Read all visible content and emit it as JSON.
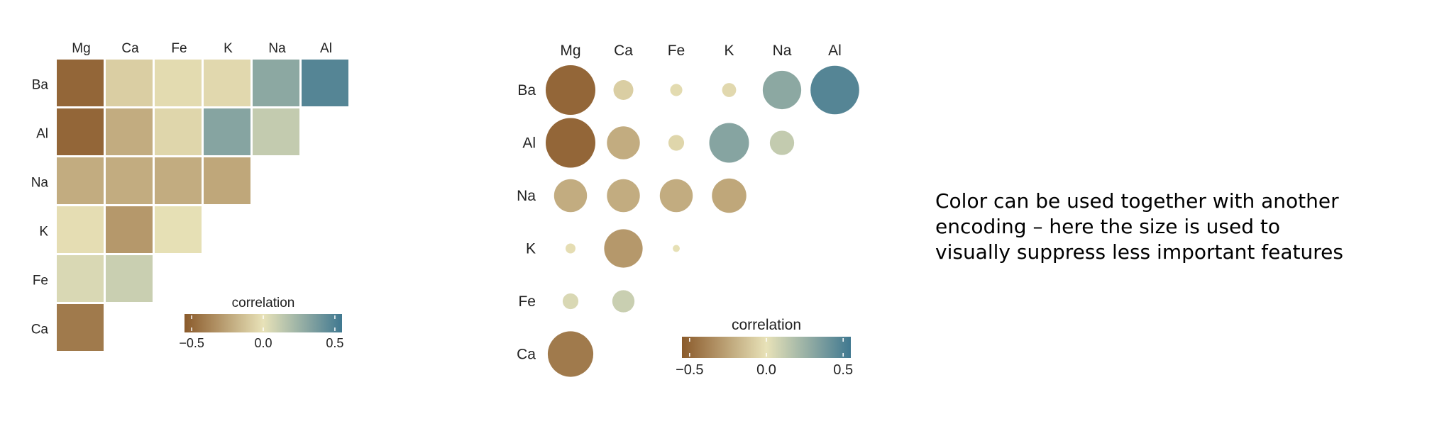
{
  "caption": {
    "lines": [
      "Color can be used together with another",
      "encoding – here the size is used to",
      "visually suppress less important features"
    ]
  },
  "colors": {
    "neg": "#8a5a2b",
    "mid": "#e8e2b8",
    "pos": "#3f7890",
    "background": "#ffffff"
  },
  "chart_data": [
    {
      "type": "heatmap",
      "title": "",
      "columns": [
        "Mg",
        "Ca",
        "Fe",
        "K",
        "Na",
        "Al"
      ],
      "rows": [
        "Ba",
        "Al",
        "Na",
        "K",
        "Fe",
        "Ca"
      ],
      "values": [
        [
          -0.5,
          -0.08,
          -0.03,
          -0.04,
          0.3,
          0.48
        ],
        [
          -0.5,
          -0.22,
          -0.05,
          0.32,
          0.12,
          null
        ],
        [
          -0.22,
          -0.22,
          -0.22,
          -0.24,
          null,
          null
        ],
        [
          -0.02,
          -0.3,
          -0.01,
          null,
          null,
          null
        ],
        [
          0.05,
          0.1,
          null,
          null,
          null,
          null
        ],
        [
          -0.42,
          null,
          null,
          null,
          null,
          null
        ]
      ],
      "legend": {
        "title": "correlation",
        "ticks": [
          "−0.5",
          "0.0",
          "0.5"
        ],
        "range": [
          -0.55,
          0.55
        ],
        "placement": "bottom-right"
      }
    },
    {
      "type": "scatter",
      "encoding": "circle size and color by correlation",
      "title": "",
      "columns": [
        "Mg",
        "Ca",
        "Fe",
        "K",
        "Na",
        "Al"
      ],
      "rows": [
        "Ba",
        "Al",
        "Na",
        "K",
        "Fe",
        "Ca"
      ],
      "values": [
        [
          -0.5,
          -0.08,
          -0.03,
          -0.04,
          0.3,
          0.48
        ],
        [
          -0.5,
          -0.22,
          -0.05,
          0.32,
          0.12,
          null
        ],
        [
          -0.22,
          -0.22,
          -0.22,
          -0.24,
          null,
          null
        ],
        [
          -0.02,
          -0.3,
          -0.01,
          null,
          null,
          null
        ],
        [
          0.05,
          0.1,
          null,
          null,
          null,
          null
        ],
        [
          -0.42,
          null,
          null,
          null,
          null,
          null
        ]
      ],
      "legend": {
        "title": "correlation",
        "ticks": [
          "−0.5",
          "0.0",
          "0.5"
        ],
        "range": [
          -0.55,
          0.55
        ],
        "placement": "bottom-right"
      }
    }
  ]
}
